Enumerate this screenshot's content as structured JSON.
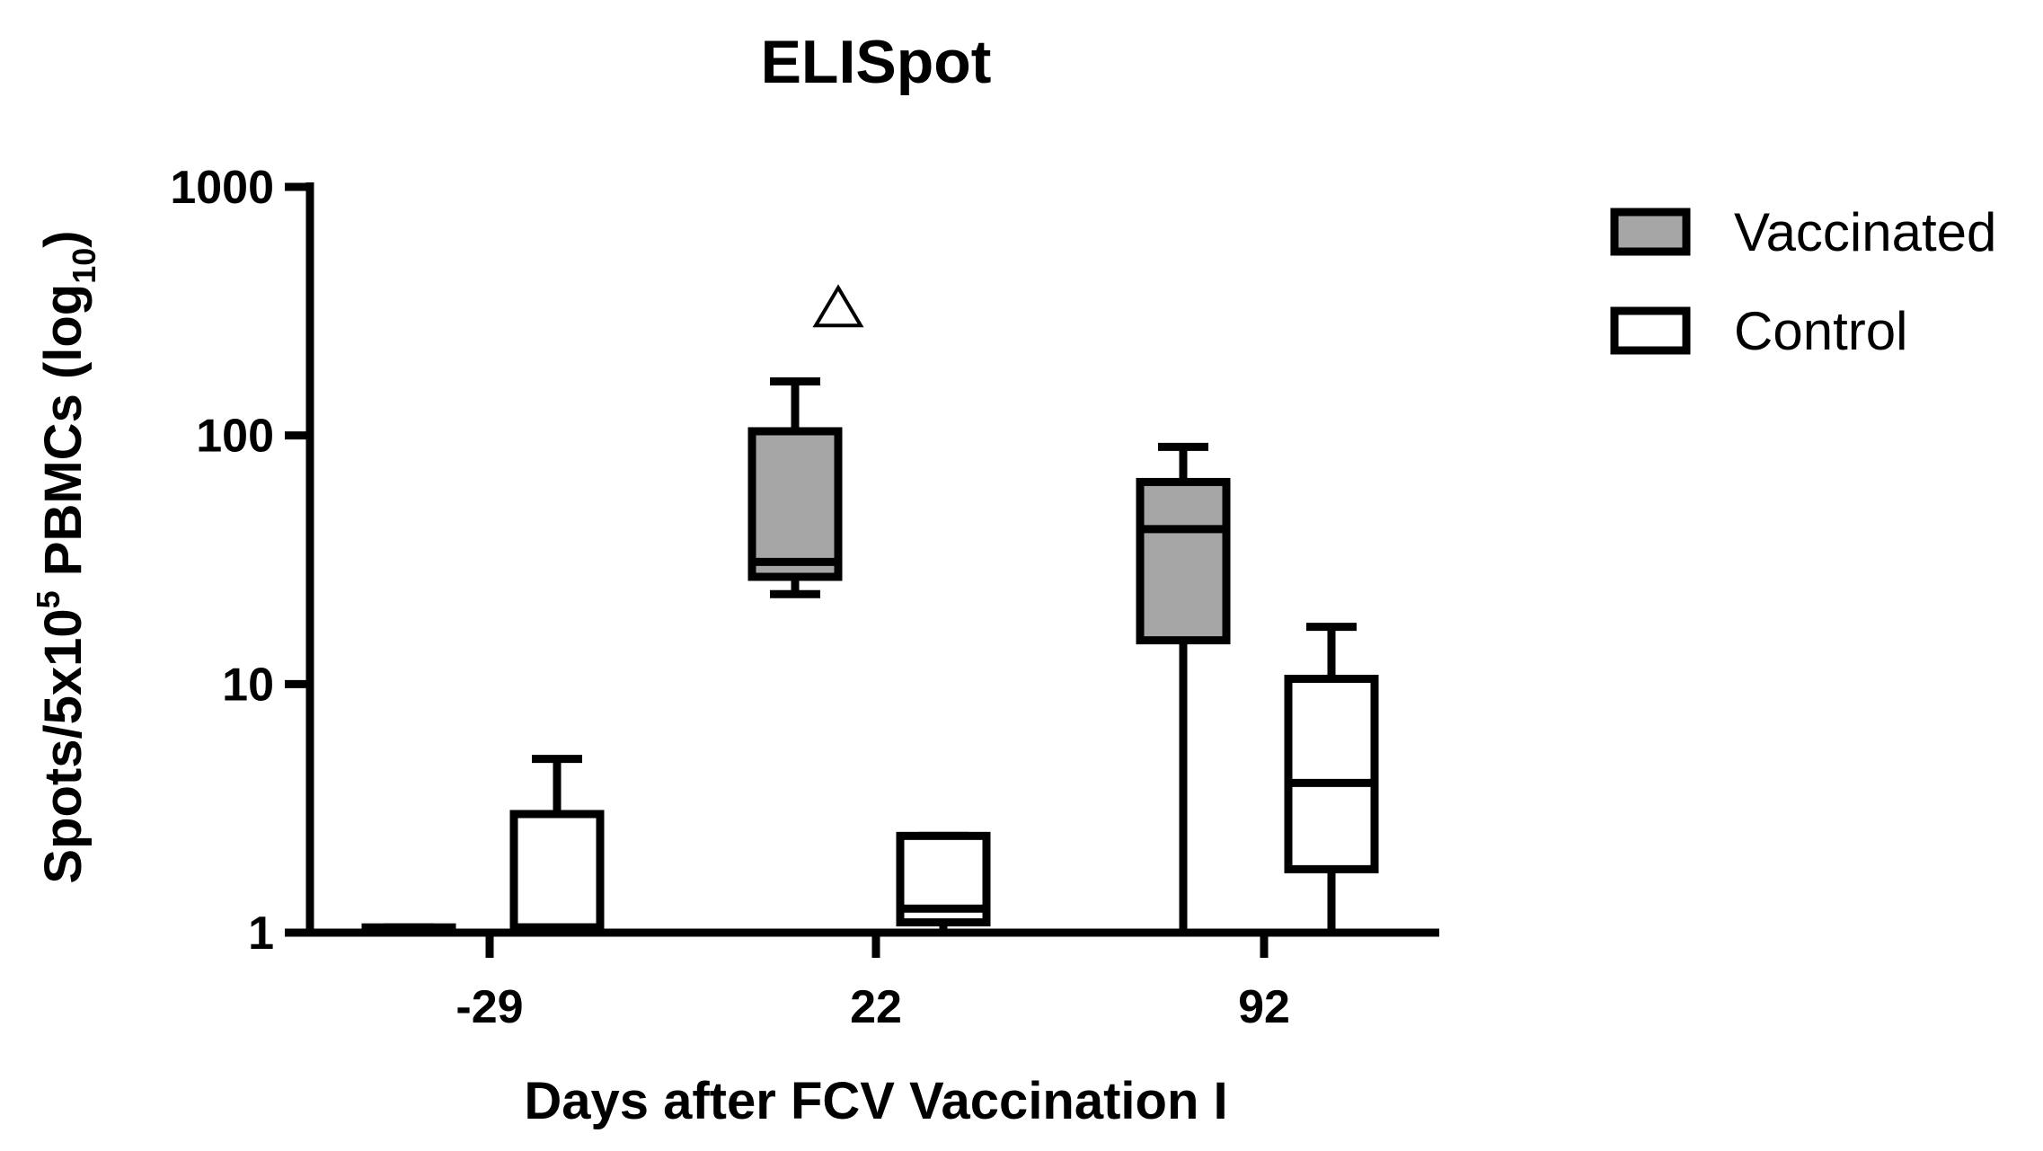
{
  "chart_data": {
    "type": "box",
    "title": "ELISpot",
    "xlabel": "Days after FCV Vaccination I",
    "ylabel": {
      "text": "Spots/5x10",
      "sup": "5",
      "mid": " PBMCs (log",
      "sub": "10",
      "end": ")"
    },
    "yscale": "log",
    "ylim": [
      1,
      1000
    ],
    "yticks": [
      1,
      10,
      100,
      1000
    ],
    "ytick_labels": [
      "1",
      "10",
      "100",
      "1000"
    ],
    "categories": [
      "-29",
      "22",
      "92"
    ],
    "legend_position": "top-right",
    "colors": {
      "Vaccinated": "#a6a6a6",
      "Control": "#ffffff",
      "stroke": "#000000"
    },
    "series": [
      {
        "name": "Vaccinated",
        "boxes": [
          {
            "category": "-29",
            "min": 1,
            "q1": 1,
            "median": 1,
            "q3": 1.05,
            "max": 1.05
          },
          {
            "category": "22",
            "min": 23,
            "q1": 27,
            "median": 31,
            "q3": 104,
            "max": 165
          },
          {
            "category": "92",
            "min": 1,
            "q1": 15,
            "median": 42,
            "q3": 65,
            "max": 90
          }
        ],
        "outliers": [
          {
            "category": "22",
            "value": 330,
            "marker": "open-triangle"
          }
        ]
      },
      {
        "name": "Control",
        "boxes": [
          {
            "category": "-29",
            "min": 1,
            "q1": 1.05,
            "median": 1.05,
            "q3": 3.0,
            "max": 5.0
          },
          {
            "category": "22",
            "min": 1,
            "q1": 1.1,
            "median": 1.25,
            "q3": 2.45,
            "max": 2.45
          },
          {
            "category": "92",
            "min": 1,
            "q1": 1.8,
            "median": 4.0,
            "q3": 10.5,
            "max": 17
          }
        ]
      }
    ]
  }
}
